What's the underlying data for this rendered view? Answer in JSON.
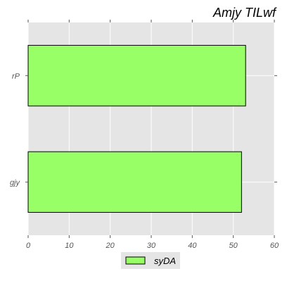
{
  "chart_data": {
    "type": "bar",
    "orientation": "horizontal",
    "title": "Amjy TILwf",
    "xlabel": "",
    "ylabel": "",
    "categories": [
      "gjy",
      "rP"
    ],
    "series": [
      {
        "name": "syDA",
        "values": [
          52,
          53
        ],
        "color": "#99ff66"
      }
    ],
    "xlim": [
      0,
      60
    ],
    "xticks": [
      0,
      10,
      20,
      30,
      40,
      50,
      60
    ],
    "grid": true,
    "legend_position": "bottom-center",
    "background_color": "#e5e5e5",
    "grid_color": "#ffffff",
    "bar_edge_color": "#000000"
  }
}
